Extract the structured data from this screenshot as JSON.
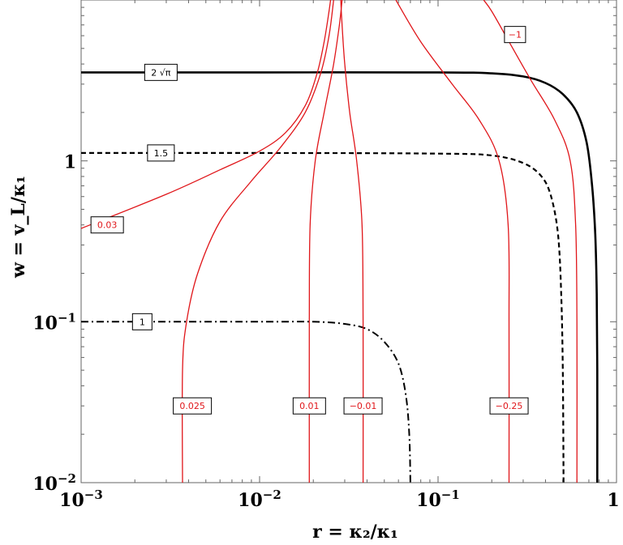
{
  "chart_data": {
    "type": "line",
    "title": "",
    "xlabel": "r = κ₂/κ₁",
    "ylabel": "w = v_L/κ₁",
    "xscale": "log",
    "yscale": "log",
    "xlim": [
      0.001,
      1
    ],
    "ylim": [
      0.01,
      10
    ],
    "grid": false,
    "legend": "none (inline contour labels)",
    "x_tick_labels": [
      {
        "value": 0.001,
        "base": "10",
        "exp": "−3"
      },
      {
        "value": 0.01,
        "base": "10",
        "exp": "−2"
      },
      {
        "value": 0.1,
        "base": "10",
        "exp": "−1"
      },
      {
        "value": 1,
        "base": "1",
        "exp": ""
      }
    ],
    "y_tick_labels": [
      {
        "value": 0.01,
        "base": "10",
        "exp": "−2"
      },
      {
        "value": 0.1,
        "base": "10",
        "exp": "−1"
      },
      {
        "value": 1,
        "base": "1",
        "exp": ""
      }
    ],
    "colors": {
      "black_series": "#000000",
      "red_series": "#e0161a"
    },
    "series": [
      {
        "label": "2 √π",
        "color": "#000000",
        "style": "solid",
        "width": 2.6,
        "label_at": [
          0.0028,
          3.55
        ],
        "points": [
          [
            0.001,
            3.55
          ],
          [
            0.01,
            3.55
          ],
          [
            0.1,
            3.55
          ],
          [
            0.2,
            3.5
          ],
          [
            0.3,
            3.35
          ],
          [
            0.4,
            3.05
          ],
          [
            0.5,
            2.6
          ],
          [
            0.6,
            2.0
          ],
          [
            0.68,
            1.3
          ],
          [
            0.73,
            0.7
          ],
          [
            0.76,
            0.35
          ],
          [
            0.775,
            0.15
          ],
          [
            0.78,
            0.05
          ],
          [
            0.78,
            0.01
          ]
        ]
      },
      {
        "label": "1.5",
        "color": "#000000",
        "style": "dashed",
        "width": 2.2,
        "label_at": [
          0.0028,
          1.12
        ],
        "points": [
          [
            0.001,
            1.12
          ],
          [
            0.01,
            1.12
          ],
          [
            0.1,
            1.11
          ],
          [
            0.2,
            1.08
          ],
          [
            0.3,
            0.97
          ],
          [
            0.38,
            0.8
          ],
          [
            0.43,
            0.6
          ],
          [
            0.47,
            0.35
          ],
          [
            0.49,
            0.15
          ],
          [
            0.5,
            0.05
          ],
          [
            0.505,
            0.01
          ]
        ]
      },
      {
        "label": "1",
        "color": "#000000",
        "style": "dashdot",
        "width": 2.0,
        "label_at": [
          0.0022,
          0.1
        ],
        "points": [
          [
            0.001,
            0.1
          ],
          [
            0.01,
            0.1
          ],
          [
            0.02,
            0.1
          ],
          [
            0.03,
            0.097
          ],
          [
            0.04,
            0.09
          ],
          [
            0.05,
            0.075
          ],
          [
            0.06,
            0.055
          ],
          [
            0.066,
            0.035
          ],
          [
            0.069,
            0.02
          ],
          [
            0.07,
            0.01
          ]
        ]
      },
      {
        "label": "0.03",
        "color": "#e0161a",
        "style": "solid",
        "width": 1.3,
        "label_at": [
          0.0014,
          0.4
        ],
        "points": [
          [
            0.001,
            0.38
          ],
          [
            0.003,
            0.62
          ],
          [
            0.006,
            0.88
          ],
          [
            0.01,
            1.15
          ],
          [
            0.014,
            1.5
          ],
          [
            0.018,
            2.2
          ],
          [
            0.021,
            3.5
          ],
          [
            0.023,
            5.5
          ],
          [
            0.0245,
            8.5
          ],
          [
            0.025,
            10
          ]
        ]
      },
      {
        "label": "0.025",
        "color": "#e0161a",
        "style": "solid",
        "width": 1.3,
        "label_at": [
          0.0042,
          0.03
        ],
        "points": [
          [
            0.0037,
            0.01
          ],
          [
            0.0037,
            0.05
          ],
          [
            0.0039,
            0.1
          ],
          [
            0.0045,
            0.2
          ],
          [
            0.006,
            0.42
          ],
          [
            0.009,
            0.75
          ],
          [
            0.013,
            1.2
          ],
          [
            0.018,
            2.0
          ],
          [
            0.022,
            3.5
          ],
          [
            0.0245,
            6.0
          ],
          [
            0.026,
            10
          ]
        ]
      },
      {
        "label": "0.01",
        "color": "#e0161a",
        "style": "solid",
        "width": 1.3,
        "label_at": [
          0.019,
          0.03
        ],
        "points": [
          [
            0.019,
            0.01
          ],
          [
            0.019,
            0.1
          ],
          [
            0.0192,
            0.4
          ],
          [
            0.0205,
            1.0
          ],
          [
            0.023,
            2.0
          ],
          [
            0.026,
            4.0
          ],
          [
            0.028,
            7.0
          ],
          [
            0.029,
            10
          ]
        ]
      },
      {
        "label": "−0.01",
        "color": "#e0161a",
        "style": "solid",
        "width": 1.3,
        "label_at": [
          0.038,
          0.03
        ],
        "points": [
          [
            0.038,
            0.01
          ],
          [
            0.038,
            0.1
          ],
          [
            0.0375,
            0.4
          ],
          [
            0.035,
            1.0
          ],
          [
            0.032,
            2.0
          ],
          [
            0.03,
            4.0
          ],
          [
            0.029,
            7.0
          ],
          [
            0.0285,
            10
          ]
        ]
      },
      {
        "label": "−0.25",
        "color": "#e0161a",
        "style": "solid",
        "width": 1.3,
        "label_at": [
          0.25,
          0.03
        ],
        "points": [
          [
            0.25,
            0.01
          ],
          [
            0.25,
            0.1
          ],
          [
            0.247,
            0.4
          ],
          [
            0.22,
            1.0
          ],
          [
            0.17,
            1.8
          ],
          [
            0.12,
            3.0
          ],
          [
            0.08,
            5.5
          ],
          [
            0.058,
            10
          ]
        ]
      },
      {
        "label": "−1",
        "color": "#e0161a",
        "style": "solid",
        "width": 1.3,
        "label_at": [
          0.27,
          6.1
        ],
        "points": [
          [
            0.6,
            0.01
          ],
          [
            0.6,
            0.1
          ],
          [
            0.59,
            0.4
          ],
          [
            0.55,
            1.0
          ],
          [
            0.45,
            1.8
          ],
          [
            0.33,
            3.2
          ],
          [
            0.25,
            5.5
          ],
          [
            0.2,
            8.5
          ],
          [
            0.18,
            10
          ]
        ]
      }
    ]
  }
}
